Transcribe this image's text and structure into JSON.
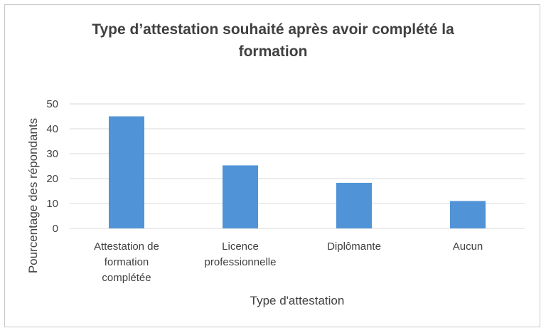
{
  "chart_data": {
    "type": "bar",
    "title_lines": [
      "Type d’attestation souhaité après avoir complété la",
      "formation"
    ],
    "xlabel": "Type d'attestation",
    "ylabel": "Pourcentage des répondants",
    "categories": [
      [
        "Attestation de",
        "formation",
        "complétée"
      ],
      [
        "Licence",
        "professionnelle"
      ],
      [
        "Diplômante"
      ],
      [
        "Aucun"
      ]
    ],
    "values": [
      45,
      25.3,
      18.3,
      11
    ],
    "ylim": [
      0,
      50
    ],
    "yticks": [
      "0",
      "10",
      "20",
      "30",
      "40",
      "50"
    ],
    "grid": true,
    "legend": "none",
    "bar_color": "#5093d6"
  }
}
